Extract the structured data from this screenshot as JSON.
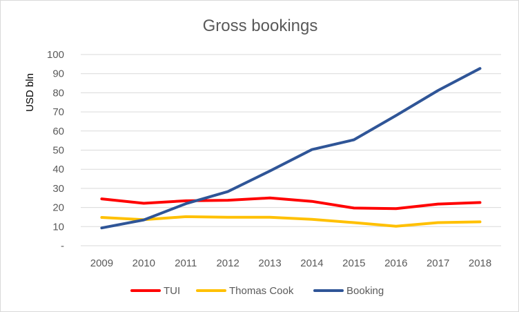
{
  "chart_data": {
    "type": "line",
    "title": "Gross bookings",
    "ylabel": "USD bln",
    "xlabel": "",
    "categories": [
      "2009",
      "2010",
      "2011",
      "2012",
      "2013",
      "2014",
      "2015",
      "2016",
      "2017",
      "2018"
    ],
    "y_ticks": [
      {
        "value": 0,
        "label": "-"
      },
      {
        "value": 10,
        "label": "10"
      },
      {
        "value": 20,
        "label": "20"
      },
      {
        "value": 30,
        "label": "30"
      },
      {
        "value": 40,
        "label": "40"
      },
      {
        "value": 50,
        "label": "50"
      },
      {
        "value": 60,
        "label": "60"
      },
      {
        "value": 70,
        "label": "70"
      },
      {
        "value": 80,
        "label": "80"
      },
      {
        "value": 90,
        "label": "90"
      },
      {
        "value": 100,
        "label": "100"
      }
    ],
    "ylim": [
      0,
      100
    ],
    "grid": true,
    "legend_position": "bottom",
    "series": [
      {
        "name": "TUI",
        "color": "#ff0000",
        "values": [
          24.5,
          22.2,
          23.5,
          23.8,
          25.0,
          23.2,
          19.7,
          19.4,
          21.8,
          22.6
        ]
      },
      {
        "name": "Thomas Cook",
        "color": "#ffc000",
        "values": [
          14.8,
          13.6,
          15.2,
          14.9,
          14.9,
          13.8,
          12.1,
          10.2,
          12.1,
          12.5
        ]
      },
      {
        "name": "Booking",
        "color": "#2f5597",
        "values": [
          9.3,
          13.5,
          22.0,
          28.3,
          39.1,
          50.3,
          55.4,
          68.1,
          81.2,
          92.7
        ]
      }
    ]
  }
}
